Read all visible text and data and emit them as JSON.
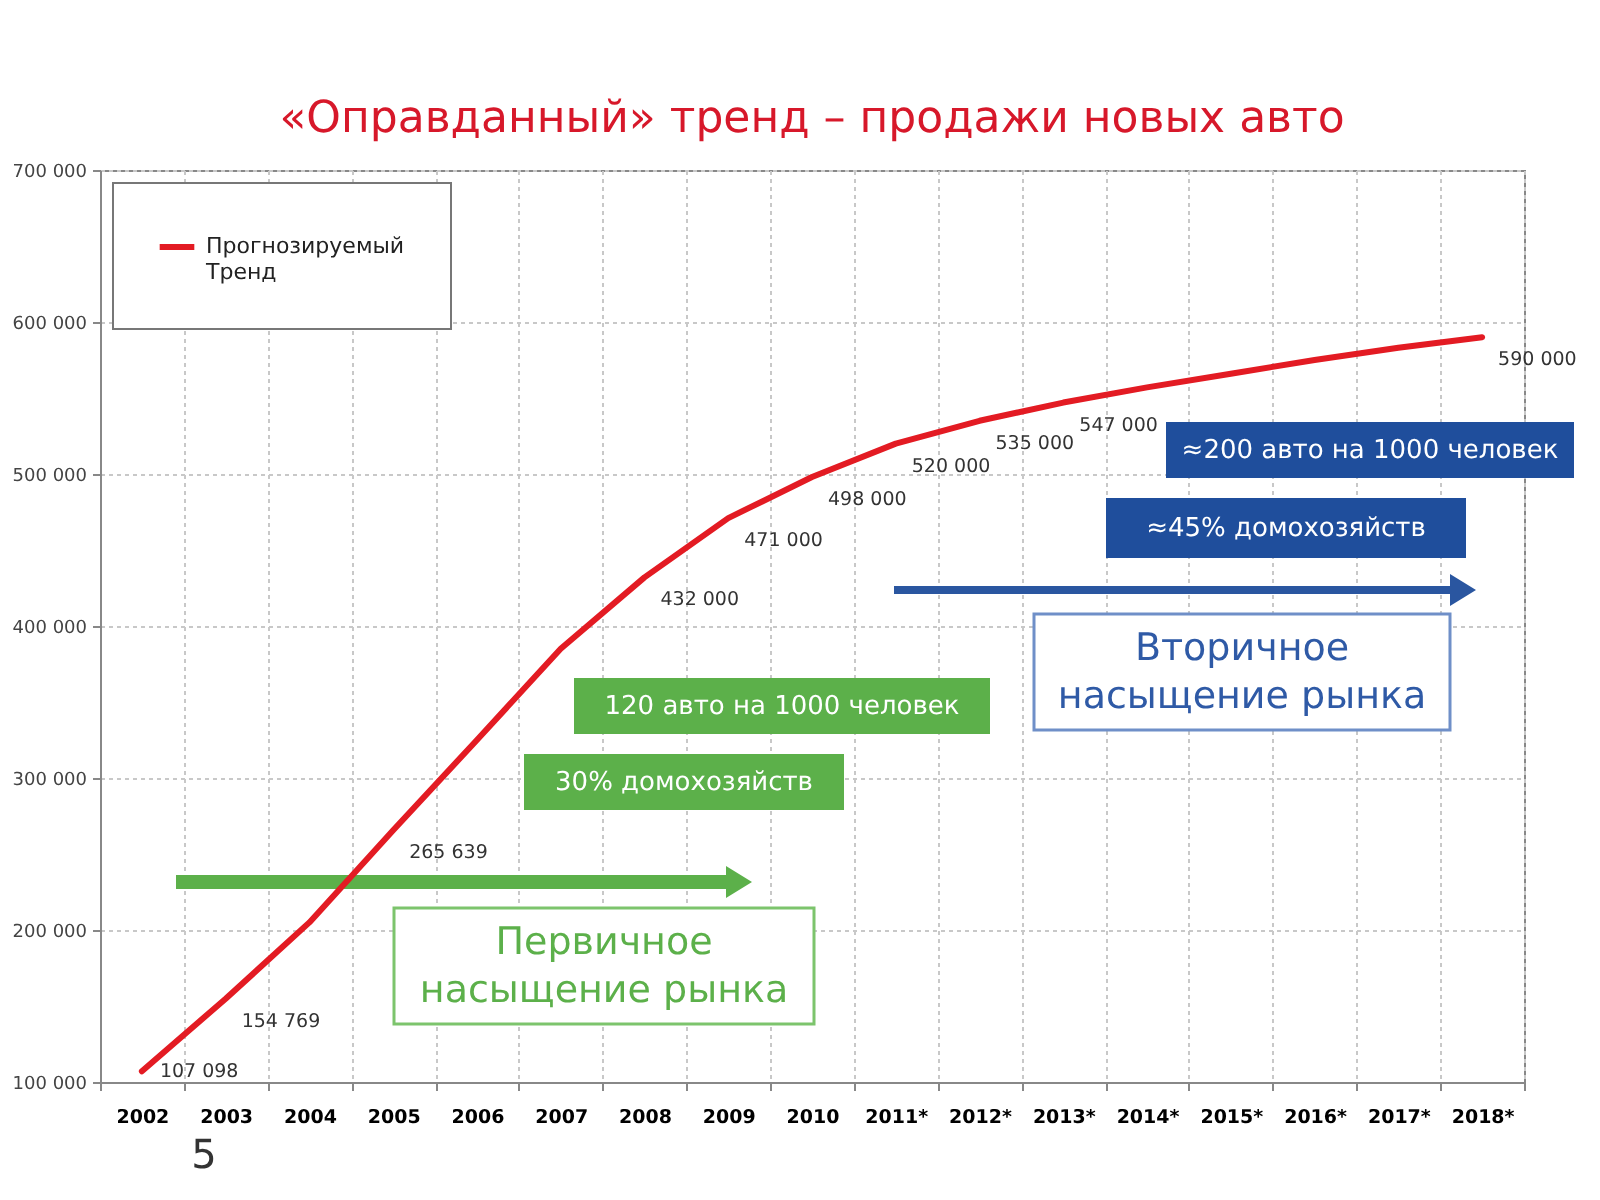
{
  "chart_data": {
    "type": "line",
    "title": "«Оправданный» тренд – продажи новых авто",
    "categories": [
      "2002",
      "2003",
      "2004",
      "2005",
      "2006",
      "2007",
      "2008",
      "2009",
      "2010",
      "2011*",
      "2012*",
      "2013*",
      "2014*",
      "2015*",
      "2016*",
      "2017*",
      "2018*"
    ],
    "series": [
      {
        "name": "Прогнозируемый Тренд",
        "color": "#e31b23",
        "values": [
          107098,
          154769,
          205000,
          265639,
          325000,
          385000,
          432000,
          471000,
          498000,
          520000,
          535000,
          547000,
          557000,
          566000,
          575000,
          583000,
          590000
        ],
        "value_labels": [
          "107 098",
          "154 769",
          null,
          "265 639",
          null,
          null,
          "432 000",
          "471 000",
          "498 000",
          "520 000",
          "535 000",
          "547 000",
          null,
          null,
          null,
          null,
          "590 000"
        ]
      }
    ],
    "ylim": [
      100000,
      700000
    ],
    "yticks": [
      {
        "value": 100000,
        "label": "100 000"
      },
      {
        "value": 200000,
        "label": "200 000"
      },
      {
        "value": 300000,
        "label": "300 000"
      },
      {
        "value": 400000,
        "label": "400 000"
      },
      {
        "value": 500000,
        "label": "500 000"
      },
      {
        "value": 600000,
        "label": "600 000"
      },
      {
        "value": 700000,
        "label": "700 000"
      }
    ],
    "grid": true,
    "legend": "top left",
    "annotations": [
      "≈200 авто на 1000 человек",
      "≈45% домохозяйств",
      "120 авто на 1000 человек",
      "Вторичное насыщение рынка",
      "30% домохозяйств",
      "Первичное насыщение рынка",
      "5"
    ]
  }
}
